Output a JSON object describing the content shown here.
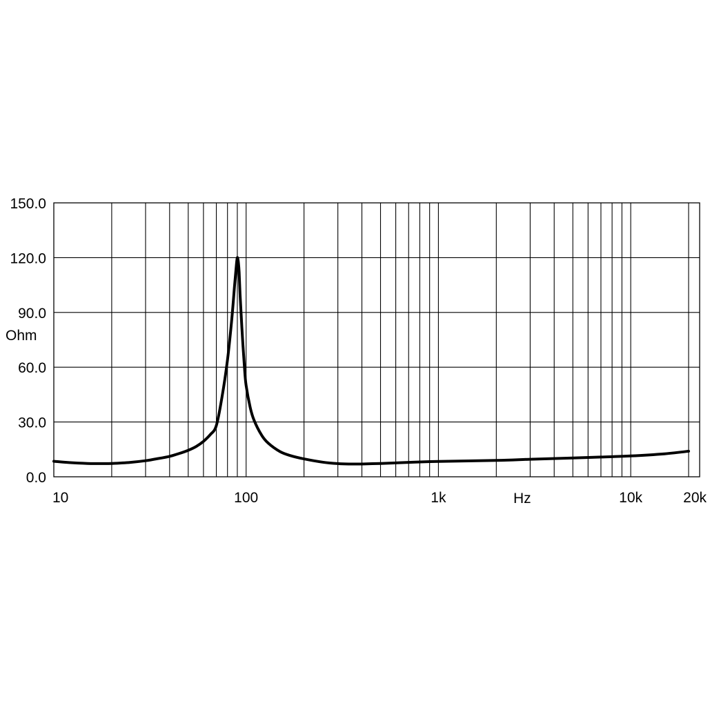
{
  "chart_data": {
    "type": "line",
    "title": "",
    "xlabel": "Hz",
    "ylabel": "Ohm",
    "x_scale": "log",
    "xlim": [
      10,
      20000
    ],
    "ylim": [
      0,
      150
    ],
    "grid": true,
    "y_ticks": [
      {
        "value": 0,
        "label": "0.0"
      },
      {
        "value": 30,
        "label": "30.0"
      },
      {
        "value": 60,
        "label": "60.0"
      },
      {
        "value": 90,
        "label": "90.0"
      },
      {
        "value": 120,
        "label": "120.0"
      },
      {
        "value": 150,
        "label": "150.0"
      }
    ],
    "x_ticks": [
      {
        "value": 10,
        "label": "10"
      },
      {
        "value": 100,
        "label": "100"
      },
      {
        "value": 1000,
        "label": "1k"
      },
      {
        "value": 10000,
        "label": "10k"
      },
      {
        "value": 20000,
        "label": "20k"
      }
    ],
    "x_grid": [
      20,
      30,
      40,
      50,
      60,
      70,
      80,
      90,
      100,
      200,
      300,
      400,
      500,
      600,
      700,
      800,
      900,
      1000,
      2000,
      3000,
      4000,
      5000,
      6000,
      7000,
      8000,
      9000,
      10000,
      20000
    ],
    "y_grid": [
      30,
      60,
      90,
      120,
      150
    ],
    "series": [
      {
        "color": "#000000",
        "x": [
          10,
          12,
          15,
          18,
          20,
          25,
          30,
          35,
          40,
          45,
          50,
          55,
          60,
          65,
          70,
          75,
          80,
          84,
          87,
          89,
          90,
          91,
          92,
          93,
          95,
          98,
          100,
          105,
          110,
          120,
          130,
          150,
          170,
          200,
          250,
          300,
          350,
          400,
          500,
          600,
          700,
          1000,
          2000,
          3000,
          5000,
          7000,
          10000,
          15000,
          20000
        ],
        "y": [
          8.5,
          7.8,
          7.3,
          7.2,
          7.3,
          7.9,
          8.8,
          10,
          11.2,
          12.8,
          14.5,
          16.6,
          19.4,
          23,
          28,
          44,
          64,
          85,
          104,
          116,
          120,
          118,
          112,
          100,
          82,
          60,
          50,
          38,
          31,
          23,
          18.5,
          13.8,
          11.6,
          9.8,
          8.0,
          7.2,
          7.0,
          7.0,
          7.3,
          7.6,
          7.9,
          8.4,
          9.0,
          9.6,
          10.3,
          10.8,
          11.4,
          12.6,
          14.0
        ]
      }
    ]
  }
}
